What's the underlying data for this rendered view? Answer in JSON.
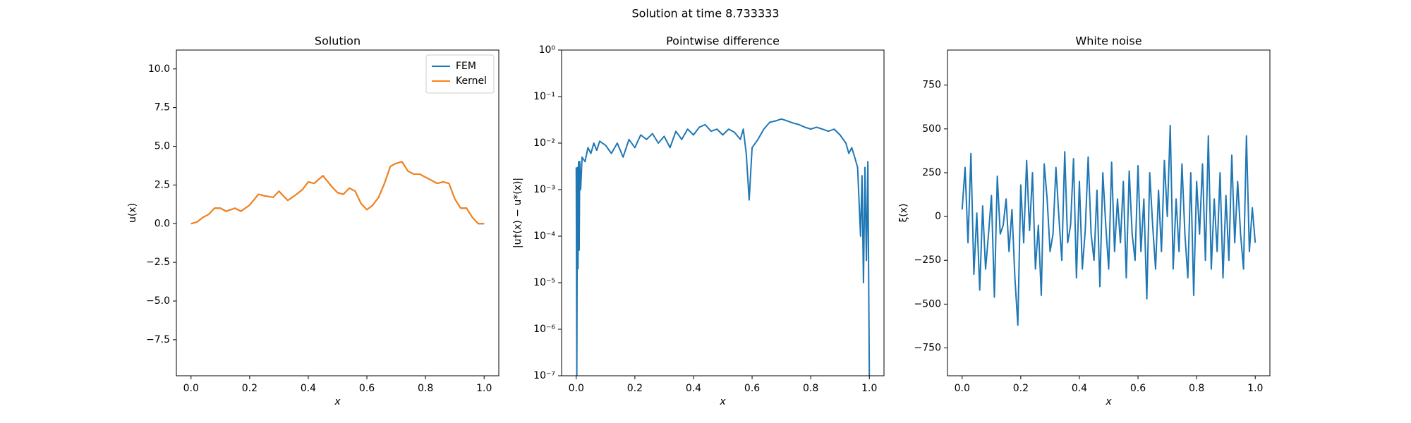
{
  "title": "Solution at time 8.733333",
  "chart_data": [
    {
      "type": "line",
      "title": "Solution",
      "xlabel": "x",
      "ylabel": "u(x)",
      "xlim": [
        -0.05,
        1.05
      ],
      "ylim": [
        -9.83,
        11.22
      ],
      "xticks": [
        {
          "value": 0,
          "label": "0.0"
        },
        {
          "value": 0.2,
          "label": "0.2"
        },
        {
          "value": 0.4,
          "label": "0.4"
        },
        {
          "value": 0.6,
          "label": "0.6"
        },
        {
          "value": 0.8,
          "label": "0.8"
        },
        {
          "value": 1,
          "label": "1.0"
        }
      ],
      "yticks": [
        {
          "value": -7.5,
          "label": "−7.5"
        },
        {
          "value": -5,
          "label": "−5.0"
        },
        {
          "value": -2.5,
          "label": "−2.5"
        },
        {
          "value": 0,
          "label": "0.0"
        },
        {
          "value": 2.5,
          "label": "2.5"
        },
        {
          "value": 5,
          "label": "5.0"
        },
        {
          "value": 7.5,
          "label": "7.5"
        },
        {
          "value": 10,
          "label": "10.0"
        }
      ],
      "legend": "upper right",
      "x": [
        0,
        0.02,
        0.04,
        0.06,
        0.08,
        0.1,
        0.12,
        0.15,
        0.17,
        0.2,
        0.23,
        0.25,
        0.28,
        0.3,
        0.33,
        0.36,
        0.38,
        0.4,
        0.42,
        0.45,
        0.48,
        0.5,
        0.52,
        0.54,
        0.56,
        0.58,
        0.6,
        0.62,
        0.64,
        0.66,
        0.68,
        0.7,
        0.72,
        0.74,
        0.76,
        0.78,
        0.8,
        0.82,
        0.84,
        0.86,
        0.88,
        0.9,
        0.92,
        0.94,
        0.96,
        0.98,
        1
      ],
      "series": [
        {
          "name": "FEM",
          "color": "#1f77b4",
          "values": [
            0,
            0.1,
            0.4,
            0.6,
            1.0,
            1.0,
            0.8,
            1.0,
            0.8,
            1.2,
            1.9,
            1.8,
            1.7,
            2.1,
            1.5,
            1.9,
            2.2,
            2.7,
            2.6,
            3.1,
            2.4,
            2.0,
            1.9,
            2.3,
            2.1,
            1.3,
            0.9,
            1.2,
            1.7,
            2.6,
            3.7,
            3.9,
            4.0,
            3.4,
            3.2,
            3.2,
            3.0,
            2.8,
            2.6,
            2.7,
            2.6,
            1.6,
            1.0,
            1.0,
            0.4,
            0.0,
            0.0
          ]
        },
        {
          "name": "Kernel",
          "color": "#ff7f0e",
          "values": [
            0,
            0.1,
            0.4,
            0.6,
            1.0,
            1.0,
            0.8,
            1.0,
            0.8,
            1.2,
            1.9,
            1.8,
            1.7,
            2.1,
            1.5,
            1.9,
            2.2,
            2.7,
            2.6,
            3.1,
            2.4,
            2.0,
            1.9,
            2.3,
            2.1,
            1.3,
            0.9,
            1.2,
            1.7,
            2.6,
            3.7,
            3.9,
            4.0,
            3.4,
            3.2,
            3.2,
            3.0,
            2.8,
            2.6,
            2.7,
            2.6,
            1.6,
            1.0,
            1.0,
            0.4,
            0.0,
            0.0
          ]
        }
      ]
    },
    {
      "type": "line",
      "title": "Pointwise difference",
      "xlabel": "x",
      "ylabel": "|u†(x) − u*(x)|",
      "xlim": [
        -0.05,
        1.05
      ],
      "ylim": [
        1e-07,
        1
      ],
      "log_y": true,
      "xticks": [
        {
          "value": 0,
          "label": "0.0"
        },
        {
          "value": 0.2,
          "label": "0.2"
        },
        {
          "value": 0.4,
          "label": "0.4"
        },
        {
          "value": 0.6,
          "label": "0.6"
        },
        {
          "value": 0.8,
          "label": "0.8"
        },
        {
          "value": 1,
          "label": "1.0"
        }
      ],
      "yticks": [
        {
          "value": 1e-07,
          "label": "10⁻⁷"
        },
        {
          "value": 1e-06,
          "label": "10⁻⁶"
        },
        {
          "value": 1e-05,
          "label": "10⁻⁵"
        },
        {
          "value": 0.0001,
          "label": "10⁻⁴"
        },
        {
          "value": 0.001,
          "label": "10⁻³"
        },
        {
          "value": 0.01,
          "label": "10⁻²"
        },
        {
          "value": 0.1,
          "label": "10⁻¹"
        },
        {
          "value": 1,
          "label": "10⁰"
        }
      ],
      "x": [
        0,
        0.002,
        0.004,
        0.006,
        0.008,
        0.01,
        0.012,
        0.015,
        0.02,
        0.03,
        0.04,
        0.05,
        0.06,
        0.07,
        0.08,
        0.1,
        0.12,
        0.14,
        0.16,
        0.18,
        0.2,
        0.22,
        0.24,
        0.26,
        0.28,
        0.3,
        0.32,
        0.34,
        0.36,
        0.38,
        0.4,
        0.42,
        0.44,
        0.46,
        0.48,
        0.5,
        0.52,
        0.54,
        0.56,
        0.57,
        0.58,
        0.59,
        0.6,
        0.62,
        0.64,
        0.66,
        0.68,
        0.7,
        0.72,
        0.74,
        0.76,
        0.78,
        0.8,
        0.82,
        0.84,
        0.86,
        0.88,
        0.9,
        0.92,
        0.93,
        0.94,
        0.95,
        0.96,
        0.97,
        0.975,
        0.98,
        0.985,
        0.99,
        0.995,
        1
      ],
      "series": [
        {
          "color": "#1f77b4",
          "values": [
            0.003,
            1e-07,
            0.003,
            2e-05,
            0.004,
            5e-05,
            0.004,
            0.001,
            0.005,
            0.004,
            0.008,
            0.006,
            0.01,
            0.007,
            0.011,
            0.009,
            0.006,
            0.01,
            0.005,
            0.012,
            0.008,
            0.015,
            0.012,
            0.016,
            0.01,
            0.014,
            0.008,
            0.018,
            0.012,
            0.02,
            0.015,
            0.022,
            0.025,
            0.018,
            0.02,
            0.015,
            0.02,
            0.017,
            0.012,
            0.02,
            0.006,
            0.0006,
            0.008,
            0.012,
            0.02,
            0.028,
            0.03,
            0.033,
            0.03,
            0.027,
            0.025,
            0.022,
            0.02,
            0.022,
            0.02,
            0.018,
            0.02,
            0.015,
            0.01,
            0.006,
            0.008,
            0.005,
            0.003,
            0.0001,
            0.002,
            1e-05,
            0.003,
            3e-05,
            0.004,
            1e-07
          ]
        }
      ]
    },
    {
      "type": "line",
      "title": "White noise",
      "xlabel": "x",
      "ylabel": "ξ(x)",
      "xlim": [
        -0.05,
        1.05
      ],
      "ylim": [
        -909,
        950
      ],
      "xticks": [
        {
          "value": 0,
          "label": "0.0"
        },
        {
          "value": 0.2,
          "label": "0.2"
        },
        {
          "value": 0.4,
          "label": "0.4"
        },
        {
          "value": 0.6,
          "label": "0.6"
        },
        {
          "value": 0.8,
          "label": "0.8"
        },
        {
          "value": 1,
          "label": "1.0"
        }
      ],
      "yticks": [
        {
          "value": -750,
          "label": "−750"
        },
        {
          "value": -500,
          "label": "−500"
        },
        {
          "value": -250,
          "label": "−250"
        },
        0,
        250,
        500,
        750
      ],
      "x": [
        0,
        0.01,
        0.02,
        0.03,
        0.04,
        0.05,
        0.06,
        0.07,
        0.08,
        0.09,
        0.1,
        0.11,
        0.12,
        0.13,
        0.14,
        0.15,
        0.16,
        0.17,
        0.18,
        0.19,
        0.2,
        0.21,
        0.22,
        0.23,
        0.24,
        0.25,
        0.26,
        0.27,
        0.28,
        0.29,
        0.3,
        0.31,
        0.32,
        0.33,
        0.34,
        0.35,
        0.36,
        0.37,
        0.38,
        0.39,
        0.4,
        0.41,
        0.42,
        0.43,
        0.44,
        0.45,
        0.46,
        0.47,
        0.48,
        0.49,
        0.5,
        0.51,
        0.52,
        0.53,
        0.54,
        0.55,
        0.56,
        0.57,
        0.58,
        0.59,
        0.6,
        0.61,
        0.62,
        0.63,
        0.64,
        0.65,
        0.66,
        0.67,
        0.68,
        0.69,
        0.7,
        0.71,
        0.72,
        0.73,
        0.74,
        0.75,
        0.76,
        0.77,
        0.78,
        0.79,
        0.8,
        0.81,
        0.82,
        0.83,
        0.84,
        0.85,
        0.86,
        0.87,
        0.88,
        0.89,
        0.9,
        0.91,
        0.92,
        0.93,
        0.94,
        0.95,
        0.96,
        0.97,
        0.98,
        0.99,
        1
      ],
      "series": [
        {
          "color": "#1f77b4",
          "values": [
            40,
            280,
            -150,
            360,
            -330,
            20,
            -420,
            60,
            -300,
            -100,
            120,
            -460,
            230,
            -100,
            -50,
            100,
            -200,
            40,
            -350,
            -620,
            180,
            -150,
            320,
            -80,
            250,
            -300,
            -50,
            -450,
            300,
            100,
            -200,
            -100,
            280,
            0,
            -250,
            370,
            -150,
            -50,
            330,
            -350,
            200,
            -300,
            -80,
            340,
            -100,
            -250,
            150,
            -400,
            250,
            -50,
            -300,
            310,
            -200,
            100,
            -150,
            200,
            -350,
            260,
            -100,
            -250,
            290,
            -200,
            100,
            -470,
            250,
            -50,
            -300,
            150,
            -200,
            320,
            0,
            520,
            -300,
            100,
            -200,
            300,
            -100,
            -350,
            250,
            -450,
            200,
            -100,
            300,
            -250,
            460,
            -300,
            100,
            -200,
            250,
            -350,
            120,
            -250,
            350,
            -150,
            200,
            -100,
            -300,
            460,
            -200,
            50,
            -150
          ]
        }
      ]
    }
  ]
}
